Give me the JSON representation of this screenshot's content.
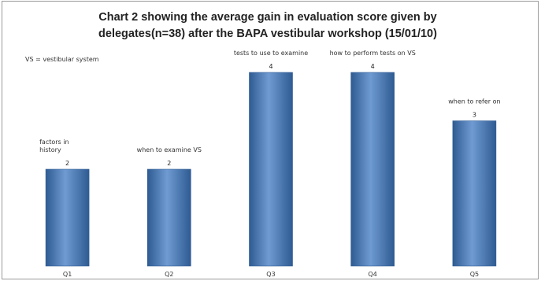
{
  "chart_data": {
    "type": "bar",
    "title_lines": [
      "Chart 2 showing the average gain in evaluation score given by",
      "delegates(n=38) after the BAPA vestibular workshop (15/01/10)"
    ],
    "legend_note": "VS = vestibular system",
    "categories": [
      "Q1",
      "Q2",
      "Q3",
      "Q4",
      "Q5"
    ],
    "values": [
      2,
      2,
      4,
      4,
      3
    ],
    "value_labels": [
      "2",
      "2",
      "4",
      "4",
      "3"
    ],
    "annotations": [
      [
        "factors in",
        "history"
      ],
      [
        "when to examine VS"
      ],
      [
        "tests to use to examine"
      ],
      [
        "how to perform tests on VS"
      ],
      [
        "when to refer on"
      ]
    ],
    "ylim": [
      0,
      5
    ],
    "grid": false,
    "bar_color": "#4f81bd",
    "bar_dark": "#2f5b93",
    "bar_light": "#6f9bd2"
  }
}
